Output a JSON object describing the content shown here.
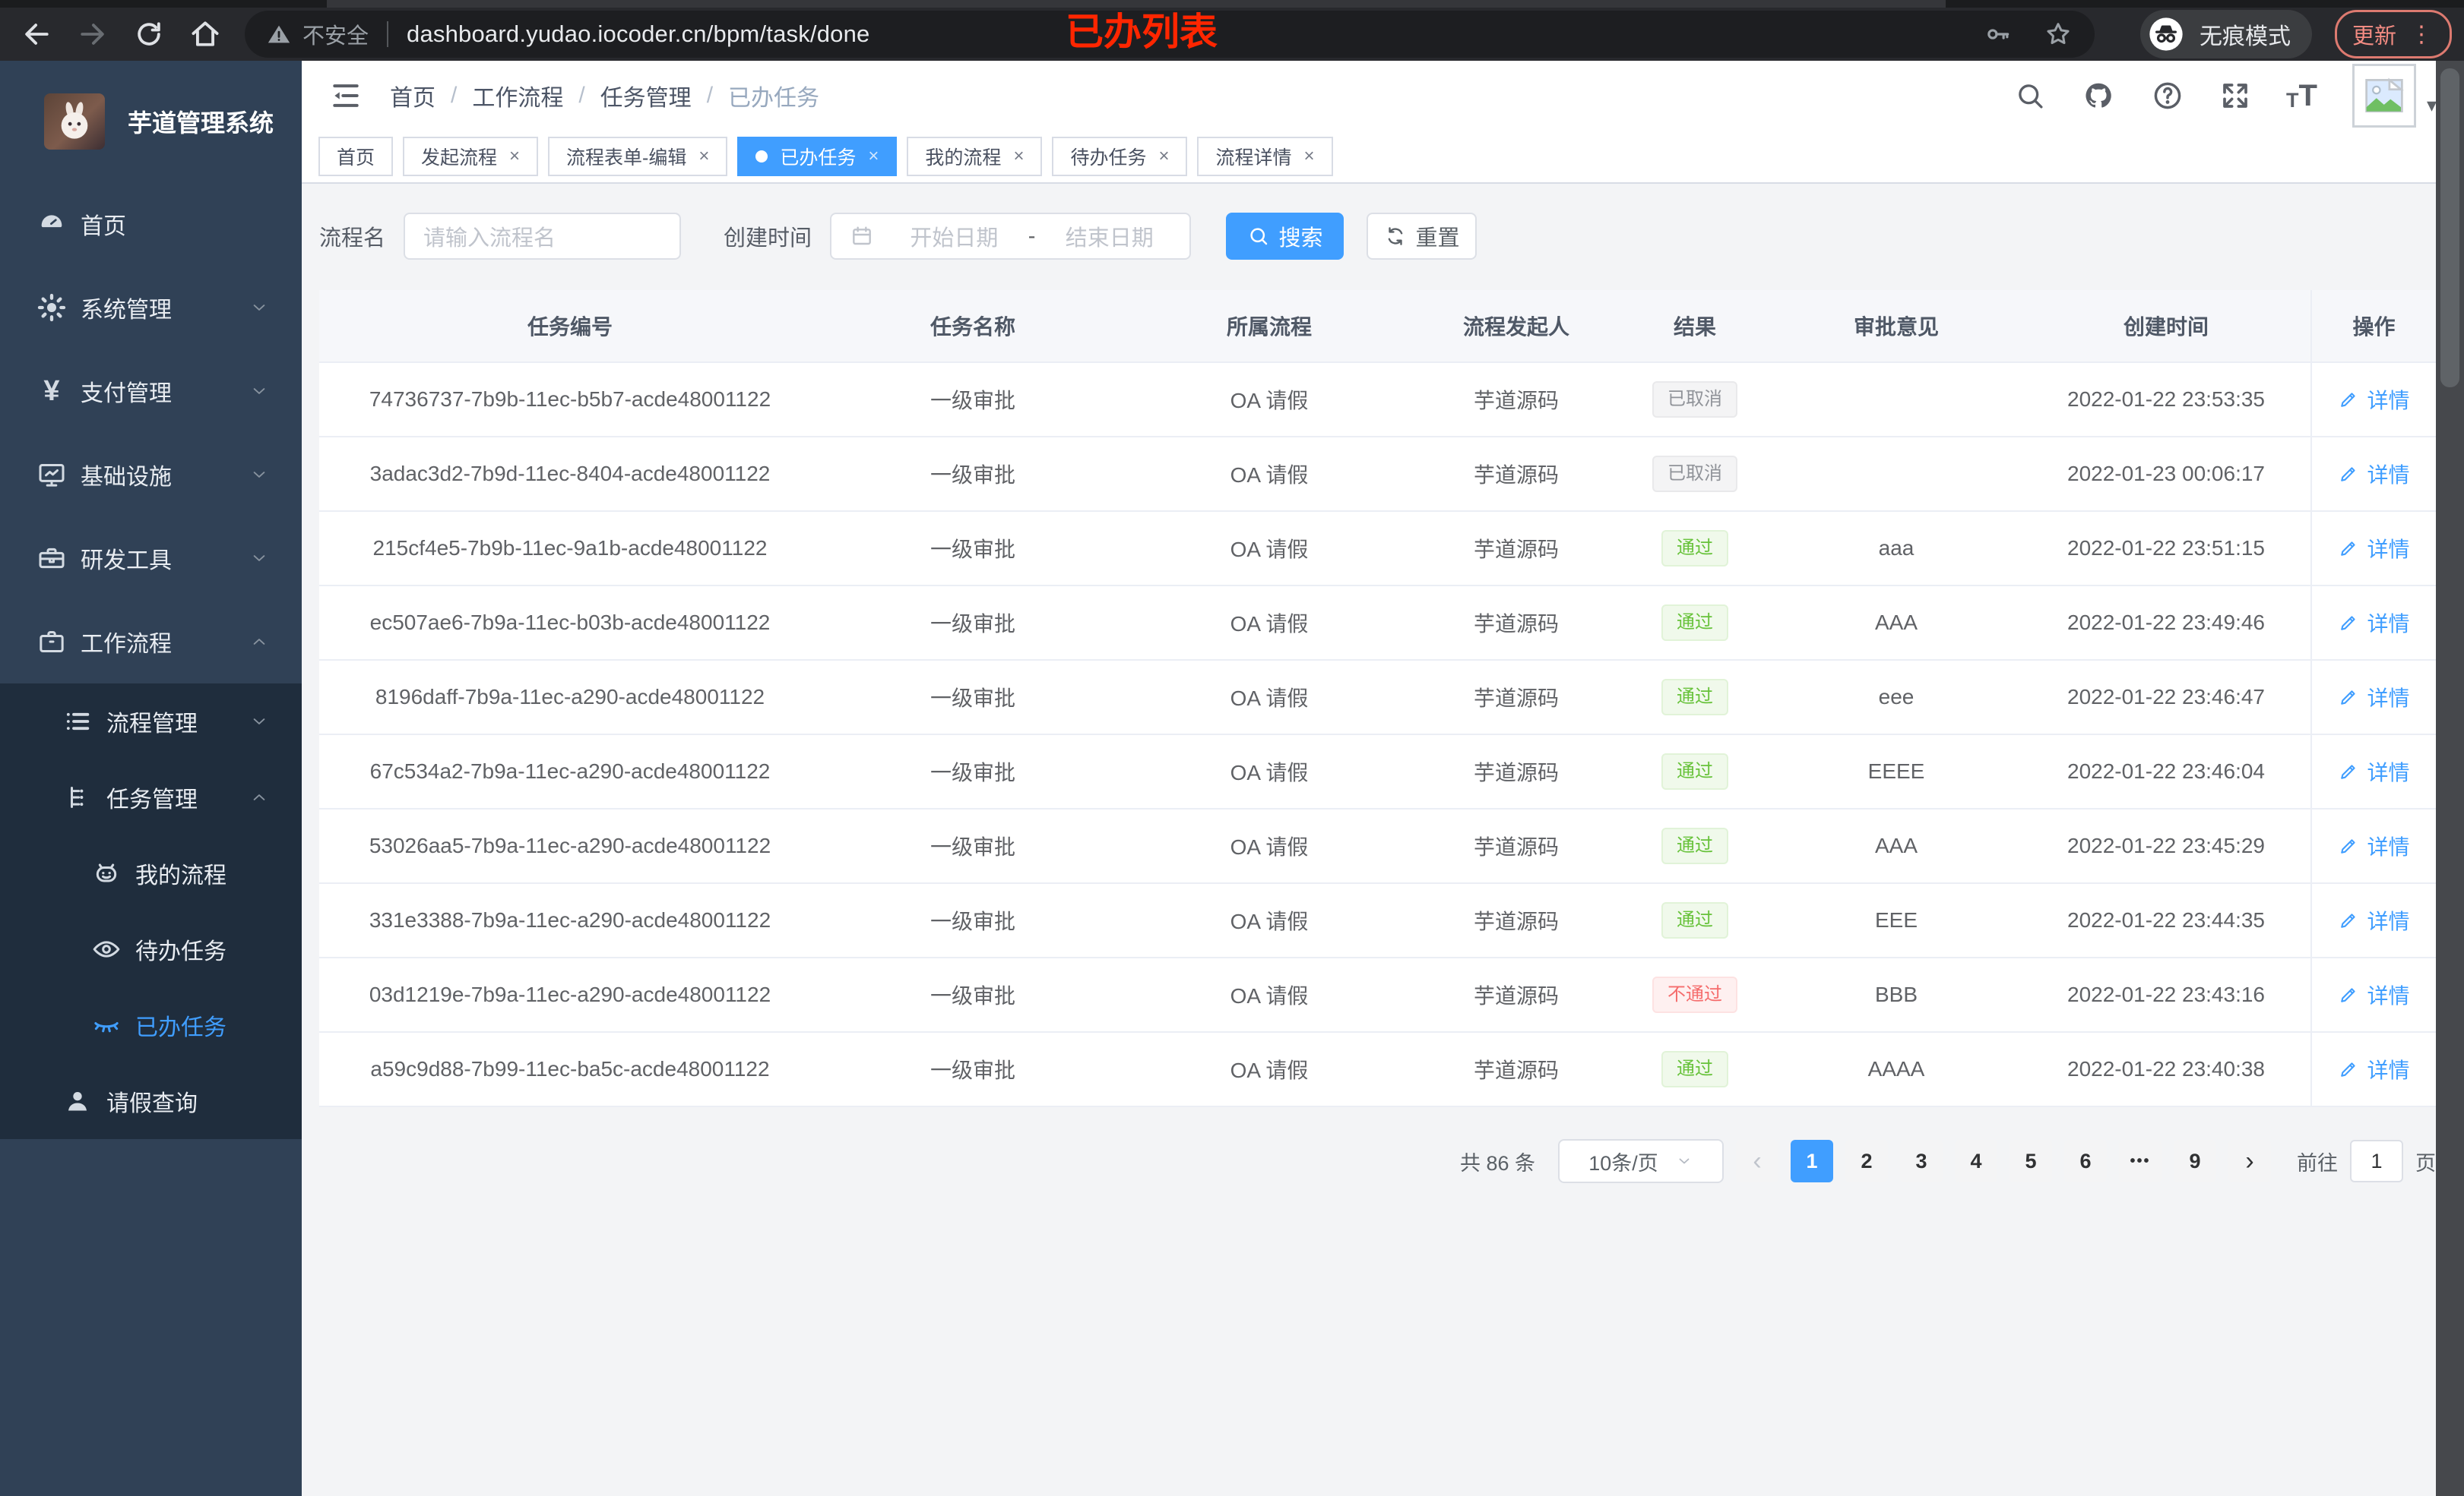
{
  "browser": {
    "security_label": "不安全",
    "url": "dashboard.yudao.iocoder.cn/bpm/task/done",
    "incognito_label": "无痕模式",
    "update_label": "更新",
    "menu_dots": "⋮"
  },
  "annotation": {
    "text": "已办列表",
    "color": "#ff2600"
  },
  "sidebar": {
    "title": "芋道管理系统",
    "items": [
      {
        "key": "home",
        "icon": "dashboard-icon",
        "label": "首页",
        "level": 1
      },
      {
        "key": "system-management",
        "icon": "gear-icon",
        "label": "系统管理",
        "level": 1,
        "chevron": "down"
      },
      {
        "key": "payment-management",
        "icon": "yen-icon",
        "label": "支付管理",
        "level": 1,
        "chevron": "down"
      },
      {
        "key": "infrastructure",
        "icon": "monitor-icon",
        "label": "基础设施",
        "level": 1,
        "chevron": "down"
      },
      {
        "key": "dev-tools",
        "icon": "toolbox-icon",
        "label": "研发工具",
        "level": 1,
        "chevron": "down"
      },
      {
        "key": "workflow",
        "icon": "briefcase-icon",
        "label": "工作流程",
        "level": 1,
        "chevron": "up"
      },
      {
        "key": "process-management",
        "icon": "list-icon",
        "label": "流程管理",
        "level": 2,
        "chevron": "down",
        "submenu": true
      },
      {
        "key": "task-management",
        "icon": "tree-icon",
        "label": "任务管理",
        "level": 2,
        "chevron": "up",
        "submenu": true
      },
      {
        "key": "my-process",
        "icon": "robot-icon",
        "label": "我的流程",
        "level": 3,
        "submenu": true
      },
      {
        "key": "todo-tasks",
        "icon": "eye-open-icon",
        "label": "待办任务",
        "level": 3,
        "submenu": true
      },
      {
        "key": "done-tasks",
        "icon": "eye-closed-icon",
        "label": "已办任务",
        "level": 3,
        "submenu": true,
        "active": true
      },
      {
        "key": "leave-query",
        "icon": "user-icon",
        "label": "请假查询",
        "level": 2,
        "submenu": true
      }
    ]
  },
  "navbar": {
    "breadcrumb": [
      "首页",
      "工作流程",
      "任务管理",
      "已办任务"
    ]
  },
  "tabs": [
    {
      "key": "home",
      "label": "首页",
      "closable": false
    },
    {
      "key": "start-process",
      "label": "发起流程",
      "closable": true
    },
    {
      "key": "form-edit",
      "label": "流程表单-编辑",
      "closable": true
    },
    {
      "key": "done-tasks",
      "label": "已办任务",
      "closable": true,
      "active": true
    },
    {
      "key": "my-process",
      "label": "我的流程",
      "closable": true
    },
    {
      "key": "todo-tasks",
      "label": "待办任务",
      "closable": true
    },
    {
      "key": "process-detail",
      "label": "流程详情",
      "closable": true
    }
  ],
  "filter": {
    "name_label": "流程名",
    "name_placeholder": "请输入流程名",
    "time_label": "创建时间",
    "start_placeholder": "开始日期",
    "range_separator": "-",
    "end_placeholder": "结束日期",
    "search_label": "搜索",
    "reset_label": "重置"
  },
  "table": {
    "headers": [
      "任务编号",
      "任务名称",
      "所属流程",
      "流程发起人",
      "结果",
      "审批意见",
      "创建时间",
      "操作"
    ],
    "detail_label": "详情",
    "rows": [
      {
        "id": "74736737-7b9b-11ec-b5b7-acde48001122",
        "name": "一级审批",
        "process": "OA 请假",
        "starter": "芋道源码",
        "result": "已取消",
        "result_type": "info",
        "opinion": "",
        "created": "2022-01-22 23:53:35"
      },
      {
        "id": "3adac3d2-7b9d-11ec-8404-acde48001122",
        "name": "一级审批",
        "process": "OA 请假",
        "starter": "芋道源码",
        "result": "已取消",
        "result_type": "info",
        "opinion": "",
        "created": "2022-01-23 00:06:17"
      },
      {
        "id": "215cf4e5-7b9b-11ec-9a1b-acde48001122",
        "name": "一级审批",
        "process": "OA 请假",
        "starter": "芋道源码",
        "result": "通过",
        "result_type": "success",
        "opinion": "aaa",
        "created": "2022-01-22 23:51:15"
      },
      {
        "id": "ec507ae6-7b9a-11ec-b03b-acde48001122",
        "name": "一级审批",
        "process": "OA 请假",
        "starter": "芋道源码",
        "result": "通过",
        "result_type": "success",
        "opinion": "AAA",
        "created": "2022-01-22 23:49:46"
      },
      {
        "id": "8196daff-7b9a-11ec-a290-acde48001122",
        "name": "一级审批",
        "process": "OA 请假",
        "starter": "芋道源码",
        "result": "通过",
        "result_type": "success",
        "opinion": "eee",
        "created": "2022-01-22 23:46:47"
      },
      {
        "id": "67c534a2-7b9a-11ec-a290-acde48001122",
        "name": "一级审批",
        "process": "OA 请假",
        "starter": "芋道源码",
        "result": "通过",
        "result_type": "success",
        "opinion": "EEEE",
        "created": "2022-01-22 23:46:04"
      },
      {
        "id": "53026aa5-7b9a-11ec-a290-acde48001122",
        "name": "一级审批",
        "process": "OA 请假",
        "starter": "芋道源码",
        "result": "通过",
        "result_type": "success",
        "opinion": "AAA",
        "created": "2022-01-22 23:45:29"
      },
      {
        "id": "331e3388-7b9a-11ec-a290-acde48001122",
        "name": "一级审批",
        "process": "OA 请假",
        "starter": "芋道源码",
        "result": "通过",
        "result_type": "success",
        "opinion": "EEE",
        "created": "2022-01-22 23:44:35"
      },
      {
        "id": "03d1219e-7b9a-11ec-a290-acde48001122",
        "name": "一级审批",
        "process": "OA 请假",
        "starter": "芋道源码",
        "result": "不通过",
        "result_type": "danger",
        "opinion": "BBB",
        "created": "2022-01-22 23:43:16"
      },
      {
        "id": "a59c9d88-7b99-11ec-ba5c-acde48001122",
        "name": "一级审批",
        "process": "OA 请假",
        "starter": "芋道源码",
        "result": "通过",
        "result_type": "success",
        "opinion": "AAAA",
        "created": "2022-01-22 23:40:38"
      }
    ]
  },
  "pagination": {
    "total_label": "共 86 条",
    "page_size": "10条/页",
    "prev_label": "‹",
    "next_label": "›",
    "pages": [
      "1",
      "2",
      "3",
      "4",
      "5",
      "6",
      "•••",
      "9"
    ],
    "active_page": "1",
    "goto_label": "前往",
    "goto_value": "1",
    "page_label": "页"
  },
  "colors": {
    "accent": "#409eff",
    "success": "#67c23a",
    "danger": "#f56c6c",
    "info": "#909399",
    "sidebar": "#304156",
    "submenu": "#1f2d3d"
  }
}
